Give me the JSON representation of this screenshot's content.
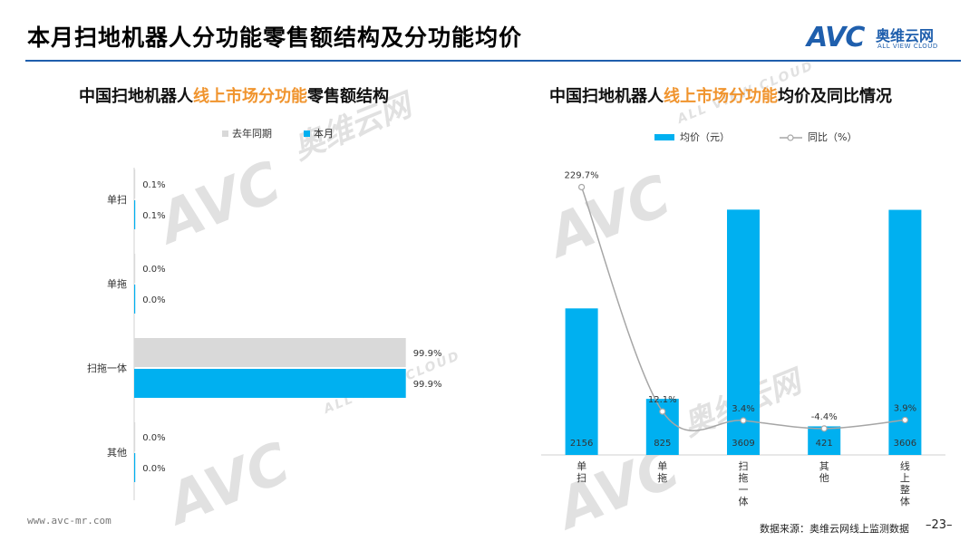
{
  "page": {
    "title": "本月扫地机器人分功能零售额结构及分功能均价",
    "footer_url": "www.avc-mr.com",
    "source_note": "数据来源：奥维云网线上监测数据",
    "page_number": "–23–"
  },
  "logo": {
    "mark": "AVC",
    "name_cn": "奥维云网",
    "name_en": "ALL VIEW CLOUD",
    "color": "#1f5fad"
  },
  "watermark": {
    "mark": "AVC",
    "cn": "奥维云网",
    "en": "ALL VIEW CLOUD"
  },
  "left_chart": {
    "title_prefix": "中国扫地机器人",
    "title_highlight": "线上市场分功能",
    "title_suffix": "零售额结构"
  },
  "right_chart": {
    "title_prefix": "中国扫地机器人",
    "title_highlight": "线上市场分功能",
    "title_suffix": "均价及同比情况"
  },
  "chart_data": [
    {
      "type": "bar",
      "orientation": "horizontal",
      "categories": [
        "单扫",
        "单拖",
        "扫拖一体",
        "其他"
      ],
      "series": [
        {
          "name": "去年同期",
          "color": "#d9d9d9",
          "values": [
            0.1,
            0.0,
            99.9,
            0.0
          ],
          "labels": [
            "0.1%",
            "0.0%",
            "99.9%",
            "0.0%"
          ]
        },
        {
          "name": "本月",
          "color": "#00b0f0",
          "values": [
            0.1,
            0.0,
            99.9,
            0.0
          ],
          "labels": [
            "0.1%",
            "0.0%",
            "99.9%",
            "0.0%"
          ]
        }
      ],
      "xlim": [
        0,
        100
      ],
      "legend": "top",
      "grid": false
    },
    {
      "type": "bar",
      "categories": [
        "单扫",
        "单拖",
        "扫拖一体",
        "其他",
        "线上整体"
      ],
      "series": [
        {
          "name": "均价（元）",
          "type": "bar",
          "color": "#00b0f0",
          "values": [
            2156,
            825,
            3609,
            421,
            3606
          ],
          "labels": [
            "2156",
            "825",
            "3609",
            "421",
            "3606"
          ]
        },
        {
          "name": "同比（%）",
          "type": "line",
          "color": "#a6a6a6",
          "values": [
            229.7,
            12.1,
            3.4,
            -4.4,
            3.9
          ],
          "labels": [
            "229.7%",
            "12.1%",
            "3.4%",
            "-4.4%",
            "3.9%"
          ]
        }
      ],
      "ylim": [
        0,
        4400
      ],
      "y2lim": [
        -30,
        260
      ],
      "legend": "top",
      "grid": false
    }
  ]
}
